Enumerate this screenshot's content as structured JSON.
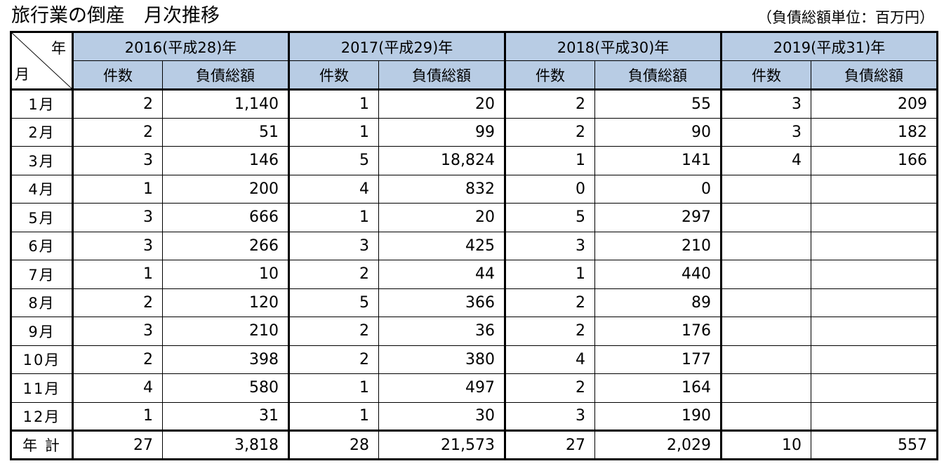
{
  "title": "旅行業の倒産　月次推移",
  "unit_note": "（負債総額単位：百万円）",
  "header": {
    "corner_year": "年",
    "corner_month": "月",
    "years": [
      "2016(平成28)年",
      "2017(平成29)年",
      "2018(平成30)年",
      "2019(平成31)年"
    ],
    "count_label": "件数",
    "debt_label": "負債総額"
  },
  "rows": [
    {
      "month": "1月",
      "values": [
        "2",
        "1,140",
        "1",
        "20",
        "2",
        "55",
        "3",
        "209"
      ]
    },
    {
      "month": "2月",
      "values": [
        "2",
        "51",
        "1",
        "99",
        "2",
        "90",
        "3",
        "182"
      ]
    },
    {
      "month": "3月",
      "values": [
        "3",
        "146",
        "5",
        "18,824",
        "1",
        "141",
        "4",
        "166"
      ]
    },
    {
      "month": "4月",
      "values": [
        "1",
        "200",
        "4",
        "832",
        "0",
        "0",
        "",
        ""
      ]
    },
    {
      "month": "5月",
      "values": [
        "3",
        "666",
        "1",
        "20",
        "5",
        "297",
        "",
        ""
      ]
    },
    {
      "month": "6月",
      "values": [
        "3",
        "266",
        "3",
        "425",
        "3",
        "210",
        "",
        ""
      ]
    },
    {
      "month": "7月",
      "values": [
        "1",
        "10",
        "2",
        "44",
        "1",
        "440",
        "",
        ""
      ]
    },
    {
      "month": "8月",
      "values": [
        "2",
        "120",
        "5",
        "366",
        "2",
        "89",
        "",
        ""
      ]
    },
    {
      "month": "9月",
      "values": [
        "3",
        "210",
        "2",
        "36",
        "2",
        "176",
        "",
        ""
      ]
    },
    {
      "month": "10月",
      "values": [
        "2",
        "398",
        "2",
        "380",
        "4",
        "177",
        "",
        ""
      ]
    },
    {
      "month": "11月",
      "values": [
        "4",
        "580",
        "1",
        "497",
        "2",
        "164",
        "",
        ""
      ]
    },
    {
      "month": "12月",
      "values": [
        "1",
        "31",
        "1",
        "30",
        "3",
        "190",
        "",
        ""
      ]
    }
  ],
  "total": {
    "label": "年 計",
    "values": [
      "27",
      "3,818",
      "28",
      "21,573",
      "27",
      "2,029",
      "10",
      "557"
    ]
  }
}
